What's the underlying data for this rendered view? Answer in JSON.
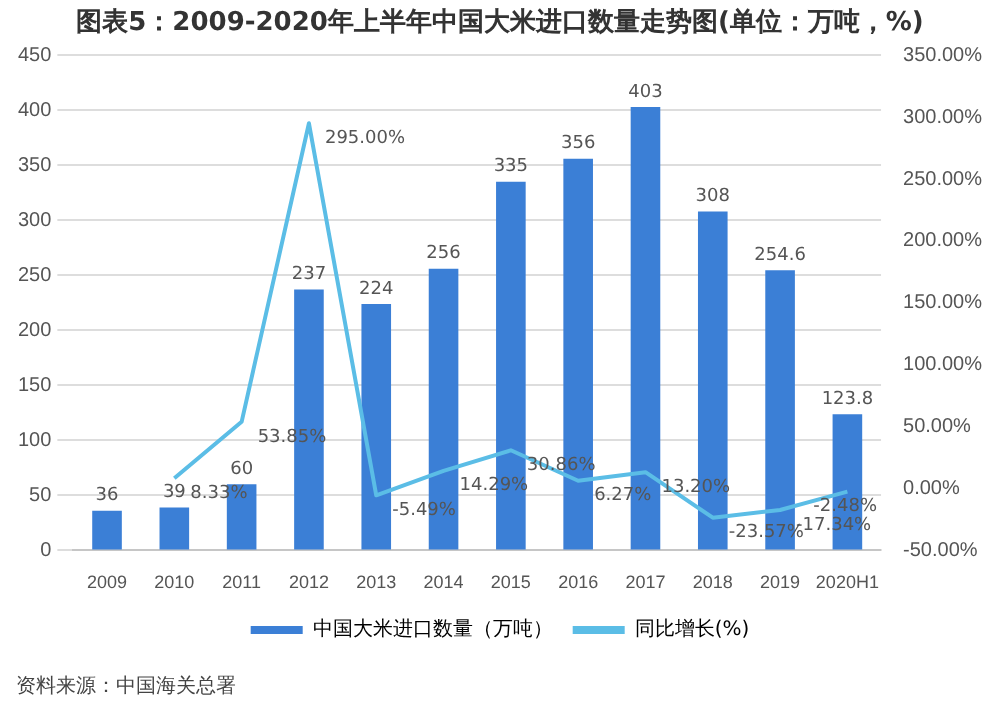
{
  "chart_data": {
    "type": "bar",
    "title": "图表5：2009-2020年上半年中国大米进口数量走势图(单位：万吨，%)",
    "categories": [
      "2009",
      "2010",
      "2011",
      "2012",
      "2013",
      "2014",
      "2015",
      "2016",
      "2017",
      "2018",
      "2019",
      "2020H1"
    ],
    "series": [
      {
        "name": "中国大米进口数量（万吨）",
        "color": "#3b7fd6",
        "values": [
          36,
          39,
          60,
          237,
          224,
          256,
          335,
          356,
          403,
          308,
          254.6,
          123.8
        ],
        "value_labels": [
          "36",
          "39",
          "60",
          "237",
          "224",
          "256",
          "335",
          "356",
          "403",
          "308",
          "254.6",
          "123.8"
        ]
      },
      {
        "name": "同比增长(%)",
        "type": "line",
        "axis": "y2",
        "color": "#5bbde6",
        "values": [
          null,
          8.33,
          53.85,
          295,
          -5.49,
          14.29,
          30.86,
          6.27,
          13.2,
          -23.57,
          -17.34,
          -2.48
        ],
        "value_labels": [
          null,
          "8.33%",
          "53.85%",
          "295.00%",
          "-5.49%",
          "14.29%",
          "30.86%",
          "6.27%",
          "13.20%",
          "-23.57%",
          "-17.34%",
          "-2.48%"
        ]
      }
    ],
    "ylim": [
      0,
      450
    ],
    "yticks": [
      0,
      50,
      100,
      150,
      200,
      250,
      300,
      350,
      400,
      450
    ],
    "y2lim": [
      -50,
      350
    ],
    "y2ticks": [
      {
        "value": -50,
        "label": "-50.00%"
      },
      {
        "value": 0,
        "label": "0.00%"
      },
      {
        "value": 50,
        "label": "50.00%"
      },
      {
        "value": 100,
        "label": "100.00%"
      },
      {
        "value": 150,
        "label": "150.00%"
      },
      {
        "value": 200,
        "label": "200.00%"
      },
      {
        "value": 250,
        "label": "250.00%"
      },
      {
        "value": 300,
        "label": "300.00%"
      },
      {
        "value": 350,
        "label": "350.00%"
      }
    ],
    "grid": "y",
    "legend": "bottom",
    "marker": "none",
    "annotations": [
      "资料来源：中国海关总署"
    ]
  }
}
